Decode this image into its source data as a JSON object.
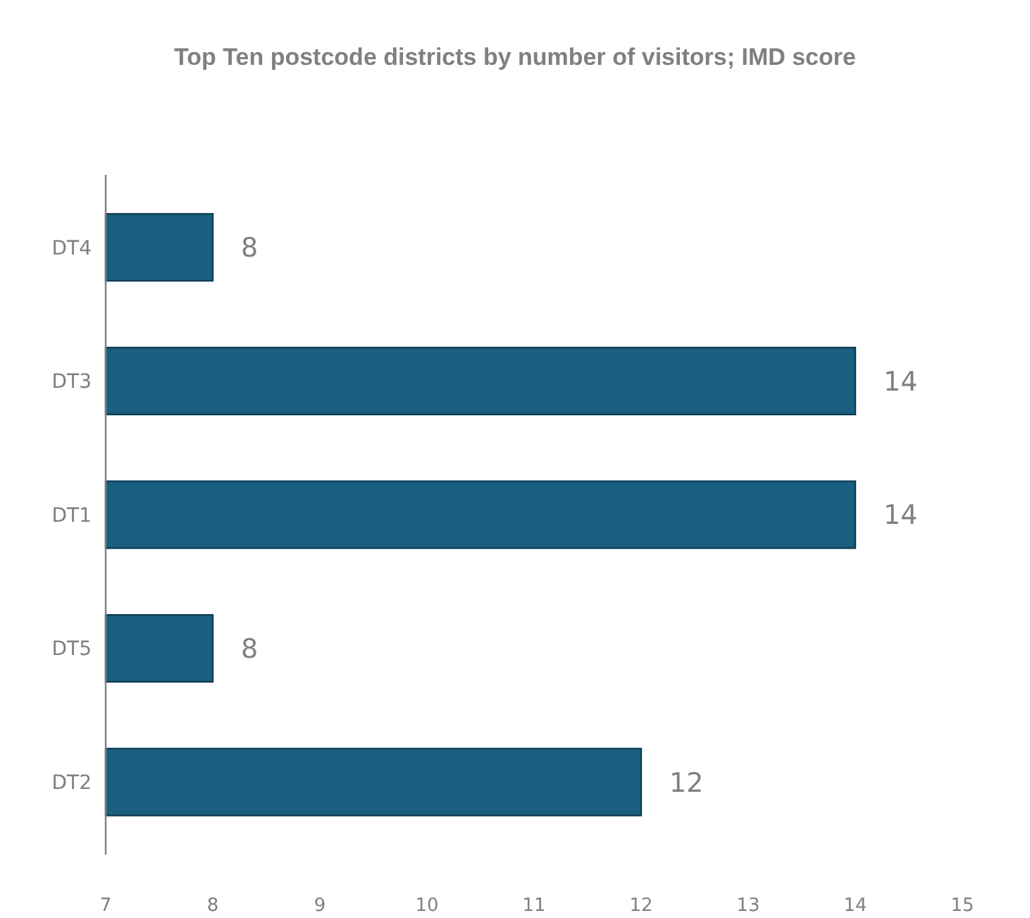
{
  "chart_data": {
    "type": "bar",
    "title": "Top Ten postcode districts by number of visitors; IMD score",
    "orientation": "horizontal",
    "categories": [
      "DT4",
      "DT3",
      "DT1",
      "DT5",
      "DT2"
    ],
    "values": [
      8,
      14,
      14,
      8,
      12
    ],
    "color": "#1a5f80",
    "xlim": [
      7,
      15
    ],
    "xticks": [
      7,
      8,
      9,
      10,
      11,
      12,
      13,
      14,
      15
    ],
    "grid": false,
    "data_labels": true
  }
}
